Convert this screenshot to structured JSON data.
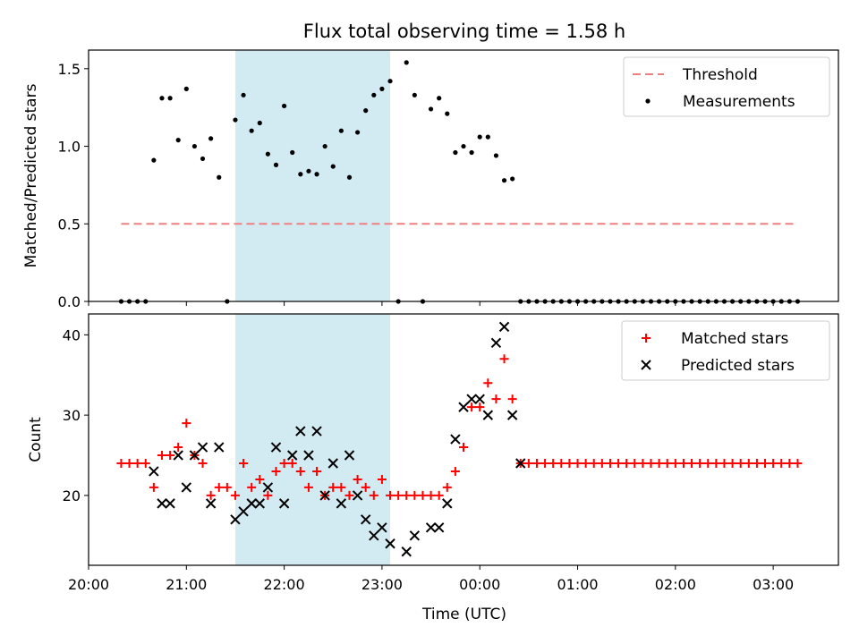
{
  "figure": {
    "title": "Flux total observing time = 1.58 h",
    "xlabel": "Time (UTC)"
  },
  "colors": {
    "threshold": "#f08080",
    "measurements": "#000000",
    "matched": "#ff0000",
    "predicted": "#000000",
    "highlight": "#add8e6"
  },
  "chart_data": [
    {
      "type": "scatter",
      "ylabel": "Matched/Predicted stars",
      "xlim": [
        "20:00",
        "03:40"
      ],
      "ylim": [
        0,
        1.62
      ],
      "yticks": [
        0.0,
        0.5,
        1.0,
        1.5
      ],
      "ytick_labels": [
        "0.0",
        "0.5",
        "1.0",
        "1.5"
      ],
      "highlight_span": [
        "21:30",
        "23:05"
      ],
      "legend_position": "top-right",
      "legend": [
        "Threshold",
        "Measurements"
      ],
      "threshold": {
        "name": "Threshold",
        "value": 0.5,
        "x_range": [
          "20:20",
          "03:15"
        ]
      },
      "series": [
        {
          "name": "Measurements",
          "x": [
            "20:20",
            "20:25",
            "20:30",
            "20:35",
            "20:40",
            "20:45",
            "20:50",
            "20:55",
            "21:00",
            "21:05",
            "21:10",
            "21:15",
            "21:20",
            "21:25",
            "21:30",
            "21:35",
            "21:40",
            "21:45",
            "21:50",
            "21:55",
            "22:00",
            "22:05",
            "22:10",
            "22:15",
            "22:20",
            "22:25",
            "22:30",
            "22:35",
            "22:40",
            "22:45",
            "22:50",
            "22:55",
            "23:00",
            "23:05",
            "23:10",
            "23:15",
            "23:20",
            "23:25",
            "23:30",
            "23:35",
            "23:40",
            "23:45",
            "23:50",
            "23:55",
            "00:00",
            "00:05",
            "00:10",
            "00:15",
            "00:20",
            "00:25",
            "00:30",
            "00:35",
            "00:40",
            "00:45",
            "00:50",
            "00:55",
            "01:00",
            "01:05",
            "01:10",
            "01:15",
            "01:20",
            "01:25",
            "01:30",
            "01:35",
            "01:40",
            "01:45",
            "01:50",
            "01:55",
            "02:00",
            "02:05",
            "02:10",
            "02:15",
            "02:20",
            "02:25",
            "02:30",
            "02:35",
            "02:40",
            "02:45",
            "02:50",
            "02:55",
            "03:00",
            "03:05",
            "03:10",
            "03:15"
          ],
          "y": [
            0,
            0,
            0,
            0,
            0.91,
            1.31,
            1.31,
            1.04,
            1.37,
            1.0,
            0.92,
            1.05,
            0.8,
            0,
            1.17,
            1.33,
            1.1,
            1.15,
            0.95,
            0.88,
            1.26,
            0.96,
            0.82,
            0.84,
            0.82,
            1.0,
            0.87,
            1.1,
            0.8,
            1.09,
            1.23,
            1.33,
            1.37,
            1.42,
            0,
            1.54,
            1.33,
            0,
            1.24,
            1.31,
            1.21,
            0.96,
            1.0,
            0.96,
            1.06,
            1.06,
            0.94,
            0.78,
            0.79,
            0,
            0,
            0,
            0,
            0,
            0,
            0,
            0,
            0,
            0,
            0,
            0,
            0,
            0,
            0,
            0,
            0,
            0,
            0,
            0,
            0,
            0,
            0,
            0,
            0,
            0,
            0,
            0,
            0,
            0,
            0,
            0,
            0,
            0,
            0
          ]
        }
      ]
    },
    {
      "type": "scatter",
      "ylabel": "Count",
      "xlim": [
        "20:00",
        "03:40"
      ],
      "ylim": [
        11.3,
        42.6
      ],
      "yticks": [
        20,
        30,
        40
      ],
      "ytick_labels": [
        "20",
        "30",
        "40"
      ],
      "xticks": [
        "20:00",
        "21:00",
        "22:00",
        "23:00",
        "00:00",
        "01:00",
        "02:00",
        "03:00"
      ],
      "highlight_span": [
        "21:30",
        "23:05"
      ],
      "legend_position": "top-right",
      "legend": [
        "Matched stars",
        "Predicted stars"
      ],
      "series": [
        {
          "name": "Matched stars",
          "marker": "plus",
          "x": [
            "20:20",
            "20:25",
            "20:30",
            "20:35",
            "20:40",
            "20:45",
            "20:50",
            "20:55",
            "21:00",
            "21:05",
            "21:10",
            "21:15",
            "21:20",
            "21:25",
            "21:30",
            "21:35",
            "21:40",
            "21:45",
            "21:50",
            "21:55",
            "22:00",
            "22:05",
            "22:10",
            "22:15",
            "22:20",
            "22:25",
            "22:30",
            "22:35",
            "22:40",
            "22:45",
            "22:50",
            "22:55",
            "23:00",
            "23:05",
            "23:10",
            "23:15",
            "23:20",
            "23:25",
            "23:30",
            "23:35",
            "23:40",
            "23:45",
            "23:50",
            "23:55",
            "00:00",
            "00:05",
            "00:10",
            "00:15",
            "00:20",
            "00:25",
            "00:30",
            "00:35",
            "00:40",
            "00:45",
            "00:50",
            "00:55",
            "01:00",
            "01:05",
            "01:10",
            "01:15",
            "01:20",
            "01:25",
            "01:30",
            "01:35",
            "01:40",
            "01:45",
            "01:50",
            "01:55",
            "02:00",
            "02:05",
            "02:10",
            "02:15",
            "02:20",
            "02:25",
            "02:30",
            "02:35",
            "02:40",
            "02:45",
            "02:50",
            "02:55",
            "03:00",
            "03:05",
            "03:10",
            "03:15"
          ],
          "y": [
            24,
            24,
            24,
            24,
            21,
            25,
            25,
            26,
            29,
            25,
            24,
            20,
            21,
            21,
            20,
            24,
            21,
            22,
            20,
            23,
            24,
            24,
            23,
            21,
            23,
            20,
            21,
            21,
            20,
            22,
            21,
            20,
            22,
            20,
            20,
            20,
            20,
            20,
            20,
            20,
            21,
            23,
            26,
            31,
            31,
            34,
            32,
            37,
            32,
            24,
            24,
            24,
            24,
            24,
            24,
            24,
            24,
            24,
            24,
            24,
            24,
            24,
            24,
            24,
            24,
            24,
            24,
            24,
            24,
            24,
            24,
            24,
            24,
            24,
            24,
            24,
            24,
            24,
            24,
            24,
            24,
            24,
            24,
            24
          ]
        },
        {
          "name": "Predicted stars",
          "marker": "x",
          "x": [
            "20:40",
            "20:45",
            "20:50",
            "20:55",
            "21:00",
            "21:05",
            "21:10",
            "21:15",
            "21:20",
            "21:30",
            "21:35",
            "21:40",
            "21:45",
            "21:50",
            "21:55",
            "22:00",
            "22:05",
            "22:10",
            "22:15",
            "22:20",
            "22:25",
            "22:30",
            "22:35",
            "22:40",
            "22:45",
            "22:50",
            "22:55",
            "23:00",
            "23:05",
            "23:15",
            "23:20",
            "23:30",
            "23:35",
            "23:40",
            "23:45",
            "23:50",
            "23:55",
            "00:00",
            "00:05",
            "00:10",
            "00:15",
            "00:20",
            "00:25"
          ],
          "y": [
            23,
            19,
            19,
            25,
            21,
            25,
            26,
            19,
            26,
            17,
            18,
            19,
            19,
            21,
            26,
            19,
            25,
            28,
            25,
            28,
            20,
            24,
            19,
            25,
            20,
            17,
            15,
            16,
            14,
            13,
            15,
            16,
            16,
            19,
            27,
            31,
            32,
            32,
            30,
            39,
            41,
            30,
            24
          ]
        }
      ]
    }
  ]
}
